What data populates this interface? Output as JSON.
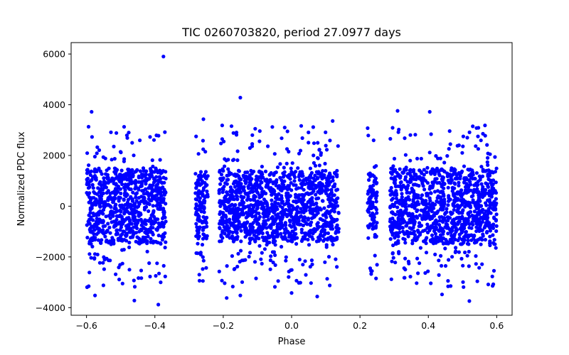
{
  "chart_data": {
    "type": "scatter",
    "title": "TIC 0260703820, period 27.0977 days",
    "xlabel": "Phase",
    "ylabel": "Normalized PDC flux",
    "xlim": [
      -0.645,
      0.645
    ],
    "ylim": [
      -4300,
      6450
    ],
    "xticks": [
      -0.6,
      -0.4,
      -0.2,
      0.0,
      0.2,
      0.4,
      0.6
    ],
    "xtick_labels": [
      "−0.6",
      "−0.4",
      "−0.2",
      "0.0",
      "0.2",
      "0.4",
      "0.6"
    ],
    "yticks": [
      -4000,
      -2000,
      0,
      2000,
      4000,
      6000
    ],
    "ytick_labels": [
      "−4000",
      "−2000",
      "0",
      "2000",
      "4000",
      "6000"
    ],
    "grid": false,
    "marker_color": "#0000ff",
    "phase_segments": [
      {
        "x_start": -0.6,
        "x_end": -0.368,
        "core_spread": 1500
      },
      {
        "x_start": -0.282,
        "x_end": -0.245,
        "core_spread": 1300
      },
      {
        "x_start": -0.212,
        "x_end": 0.138,
        "core_spread": 1400
      },
      {
        "x_start": 0.222,
        "x_end": 0.25,
        "core_spread": 1300
      },
      {
        "x_start": 0.288,
        "x_end": 0.6,
        "core_spread": 1500
      }
    ],
    "outliers": [
      {
        "x": -0.375,
        "y": 5900
      },
      {
        "x": -0.585,
        "y": 3720
      },
      {
        "x": -0.15,
        "y": 4280
      },
      {
        "x": 0.31,
        "y": 3760
      },
      {
        "x": 0.404,
        "y": 3720
      },
      {
        "x": -0.258,
        "y": 3430
      },
      {
        "x": 0.12,
        "y": 3360
      },
      {
        "x": -0.012,
        "y": 2950
      },
      {
        "x": -0.49,
        "y": 3130
      },
      {
        "x": 0.53,
        "y": 3150
      },
      {
        "x": -0.39,
        "y": -3880
      },
      {
        "x": -0.46,
        "y": -3720
      },
      {
        "x": 0.52,
        "y": -3740
      },
      {
        "x": -0.19,
        "y": -3620
      },
      {
        "x": -0.15,
        "y": -3520
      },
      {
        "x": 0.075,
        "y": -3560
      },
      {
        "x": -0.575,
        "y": -3520
      },
      {
        "x": 0.44,
        "y": -3480
      },
      {
        "x": 0.0,
        "y": -3420
      },
      {
        "x": 0.23,
        "y": -2450
      },
      {
        "x": -0.27,
        "y": -2700
      },
      {
        "x": 0.59,
        "y": -3080
      }
    ]
  }
}
